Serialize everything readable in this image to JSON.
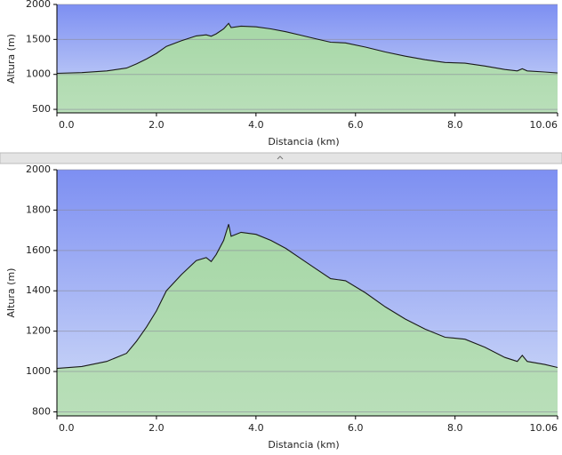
{
  "chart_data": [
    {
      "type": "area",
      "x_label": "Distancia   (km)",
      "y_label": "Altura (m)",
      "x": [
        0,
        0.5,
        1.0,
        1.4,
        1.6,
        1.8,
        2.0,
        2.2,
        2.5,
        2.8,
        3.0,
        3.1,
        3.2,
        3.35,
        3.45,
        3.5,
        3.7,
        4.0,
        4.3,
        4.6,
        4.9,
        5.2,
        5.5,
        5.8,
        6.2,
        6.6,
        7.0,
        7.4,
        7.8,
        8.2,
        8.6,
        9.0,
        9.25,
        9.35,
        9.45,
        9.8,
        10.06
      ],
      "series": [
        {
          "color": "#1a1a1a",
          "values": [
            1015,
            1025,
            1050,
            1090,
            1150,
            1220,
            1300,
            1400,
            1480,
            1550,
            1565,
            1545,
            1580,
            1650,
            1730,
            1670,
            1690,
            1680,
            1650,
            1610,
            1560,
            1510,
            1460,
            1450,
            1390,
            1320,
            1260,
            1210,
            1170,
            1160,
            1120,
            1070,
            1050,
            1080,
            1050,
            1035,
            1020
          ]
        }
      ],
      "xlim": [
        0,
        10.06
      ],
      "xticks": [
        {
          "value": 0,
          "label": "0.0"
        },
        {
          "value": 2,
          "label": "2.0"
        },
        {
          "value": 4,
          "label": "4.0"
        },
        {
          "value": 6,
          "label": "6.0"
        },
        {
          "value": 8,
          "label": "8.0"
        },
        10.06
      ],
      "ylim": [
        450,
        2000
      ],
      "yticks": [
        500,
        1000,
        1500,
        2000
      ],
      "grid": true
    },
    {
      "type": "area",
      "x_label": "Distancia   (km)",
      "y_label": "Altura (m)",
      "x": [
        0,
        0.5,
        1.0,
        1.4,
        1.6,
        1.8,
        2.0,
        2.2,
        2.5,
        2.8,
        3.0,
        3.1,
        3.2,
        3.35,
        3.45,
        3.5,
        3.7,
        4.0,
        4.3,
        4.6,
        4.9,
        5.2,
        5.5,
        5.8,
        6.2,
        6.6,
        7.0,
        7.4,
        7.8,
        8.2,
        8.6,
        9.0,
        9.25,
        9.35,
        9.45,
        9.8,
        10.06
      ],
      "series": [
        {
          "color": "#1a1a1a",
          "values": [
            1015,
            1025,
            1050,
            1090,
            1150,
            1220,
            1300,
            1400,
            1480,
            1550,
            1565,
            1545,
            1580,
            1650,
            1730,
            1670,
            1690,
            1680,
            1650,
            1610,
            1560,
            1510,
            1460,
            1450,
            1390,
            1320,
            1260,
            1210,
            1170,
            1160,
            1120,
            1070,
            1050,
            1080,
            1050,
            1035,
            1020
          ]
        }
      ],
      "xlim": [
        0,
        10.06
      ],
      "xticks": [
        {
          "value": 0,
          "label": "0.0"
        },
        {
          "value": 2,
          "label": "2.0"
        },
        {
          "value": 4,
          "label": "4.0"
        },
        {
          "value": 6,
          "label": "6.0"
        },
        {
          "value": 8,
          "label": "8.0"
        },
        10.06
      ],
      "ylim": [
        780,
        2000
      ],
      "yticks": [
        800,
        1000,
        1200,
        1400,
        1600,
        1800,
        2000
      ],
      "grid": true
    }
  ]
}
